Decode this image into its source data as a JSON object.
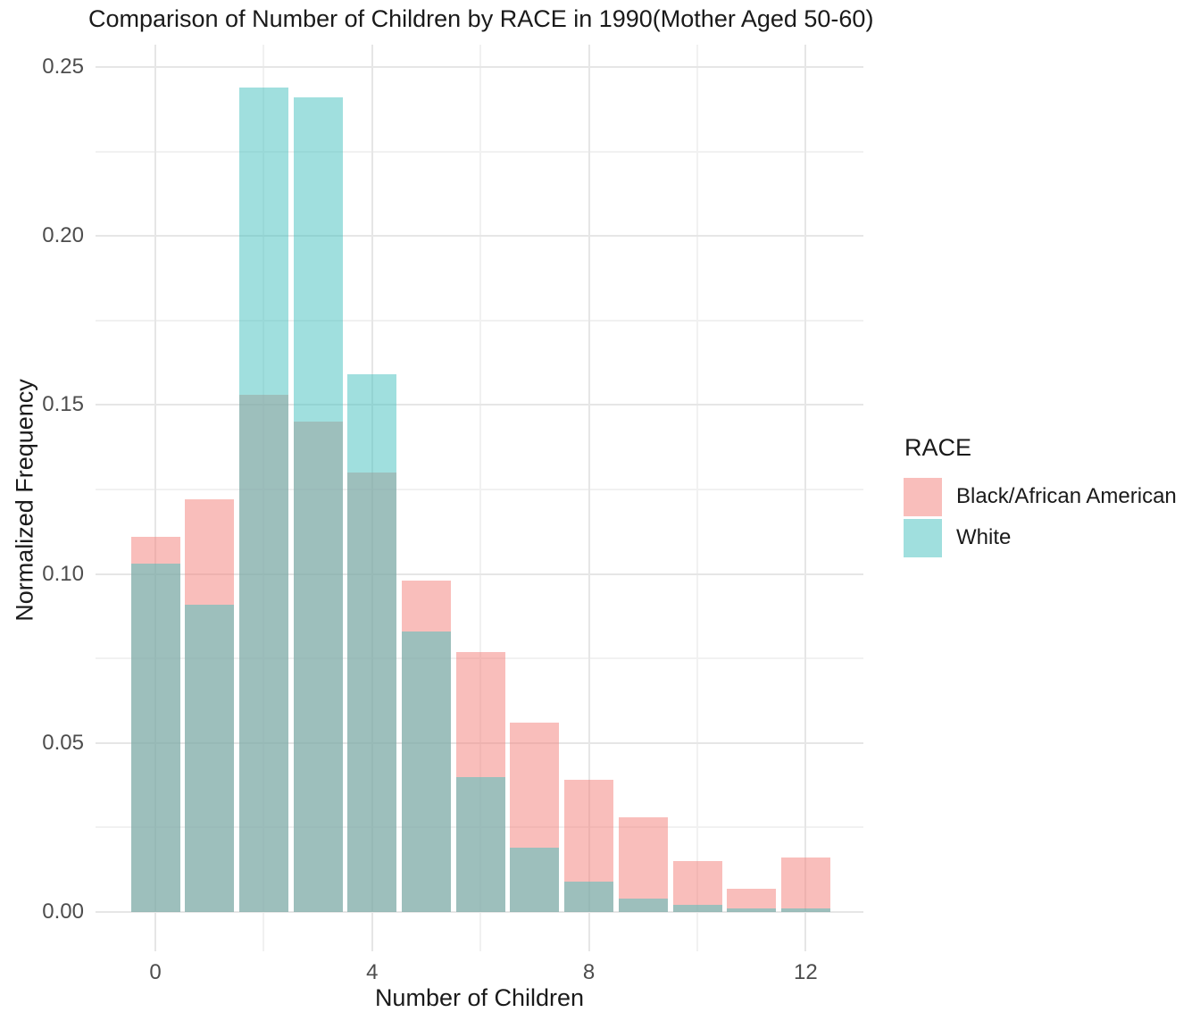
{
  "title": "Comparison of Number of Children by RACE in 1990(Mother Aged 50-60)",
  "axes": {
    "x": {
      "label": "Number of Children",
      "ticks": [
        {
          "label": "0",
          "value": 0
        },
        {
          "label": "4",
          "value": 4
        },
        {
          "label": "8",
          "value": 8
        },
        {
          "label": "12",
          "value": 12
        }
      ],
      "minor": [
        2,
        6,
        10
      ]
    },
    "y": {
      "label": "Normalized Frequency",
      "ticks": [
        {
          "label": "0.00",
          "value": 0.0
        },
        {
          "label": "0.05",
          "value": 0.05
        },
        {
          "label": "0.10",
          "value": 0.1
        },
        {
          "label": "0.15",
          "value": 0.15
        },
        {
          "label": "0.20",
          "value": 0.2
        },
        {
          "label": "0.25",
          "value": 0.25
        }
      ],
      "minor": [
        0.025,
        0.075,
        0.125,
        0.175,
        0.225
      ]
    }
  },
  "legend": {
    "title": "RACE",
    "items": [
      {
        "label": "Black/African American",
        "color": "#F9BEBB"
      },
      {
        "label": "White",
        "color": "#A0DFDE"
      }
    ]
  },
  "colors": {
    "black_series_fill": "rgba(243,125,119,0.5)",
    "white_series_fill": "rgba(65,191,189,0.5)",
    "grid_major": "#E6E6E6",
    "grid_minor": "#F1F1F1",
    "tick_text": "#4d4d4d",
    "title_text": "#1a1a1a",
    "background": "#ffffff"
  },
  "chart_data": {
    "type": "bar",
    "subtype": "overlaid-histogram",
    "title": "Comparison of Number of Children by RACE in 1990(Mother Aged 50-60)",
    "xlabel": "Number of Children",
    "ylabel": "Normalized Frequency",
    "categories": [
      0,
      1,
      2,
      3,
      4,
      5,
      6,
      7,
      8,
      9,
      10,
      11,
      12
    ],
    "series": [
      {
        "name": "Black/African American",
        "values": [
          0.111,
          0.122,
          0.153,
          0.145,
          0.13,
          0.098,
          0.077,
          0.056,
          0.039,
          0.028,
          0.015,
          0.007,
          0.016
        ]
      },
      {
        "name": "White",
        "values": [
          0.103,
          0.091,
          0.244,
          0.241,
          0.159,
          0.083,
          0.04,
          0.019,
          0.009,
          0.004,
          0.002,
          0.001,
          0.001
        ]
      }
    ],
    "xlim": [
      -0.76,
      13.1
    ],
    "ylim": [
      0,
      0.25
    ],
    "grid": true,
    "legend_position": "right",
    "bar_width": 0.9,
    "overlay_order": [
      "Black/African American",
      "White"
    ]
  }
}
